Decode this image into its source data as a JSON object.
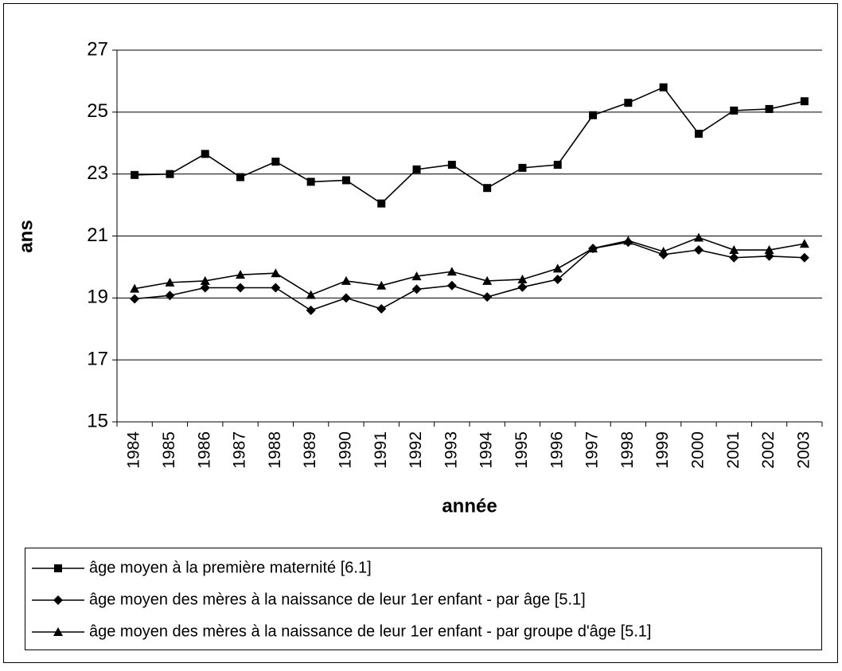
{
  "chart_data": {
    "type": "line",
    "y_label": "ans",
    "x_label": "année",
    "categories": [
      "1984",
      "1985",
      "1986",
      "1987",
      "1988",
      "1989",
      "1990",
      "1991",
      "1992",
      "1993",
      "1994",
      "1995",
      "1996",
      "1997",
      "1998",
      "1999",
      "2000",
      "2001",
      "2002",
      "2003"
    ],
    "series": [
      {
        "name": "âge moyen à la première maternité [6.1]",
        "color": "#000000",
        "marker": "square",
        "values": [
          22.97,
          23.0,
          23.65,
          22.9,
          23.4,
          22.75,
          22.8,
          22.05,
          23.15,
          23.3,
          22.55,
          23.2,
          23.3,
          24.9,
          25.3,
          25.8,
          24.3,
          25.05,
          25.1,
          25.35
        ]
      },
      {
        "name": "âge moyen des mères à la naissance de leur 1er enfant - par âge  [5.1]",
        "color": "#000000",
        "marker": "diamond",
        "values": [
          18.97,
          19.08,
          19.33,
          19.33,
          19.33,
          18.6,
          19.0,
          18.65,
          19.28,
          19.4,
          19.03,
          19.35,
          19.6,
          20.6,
          20.8,
          20.4,
          20.55,
          20.3,
          20.35,
          20.3
        ]
      },
      {
        "name": "âge moyen des mères à la naissance de leur 1er enfant - par groupe d'âge [5.1]",
        "color": "#000000",
        "marker": "triangle",
        "values": [
          19.3,
          19.5,
          19.55,
          19.75,
          19.8,
          19.1,
          19.55,
          19.4,
          19.7,
          19.85,
          19.55,
          19.6,
          19.95,
          20.6,
          20.85,
          20.5,
          20.95,
          20.55,
          20.55,
          20.75
        ]
      }
    ],
    "ylim": [
      15,
      27
    ],
    "yticks": [
      15,
      17,
      19,
      21,
      23,
      25,
      27
    ],
    "grid": true
  }
}
